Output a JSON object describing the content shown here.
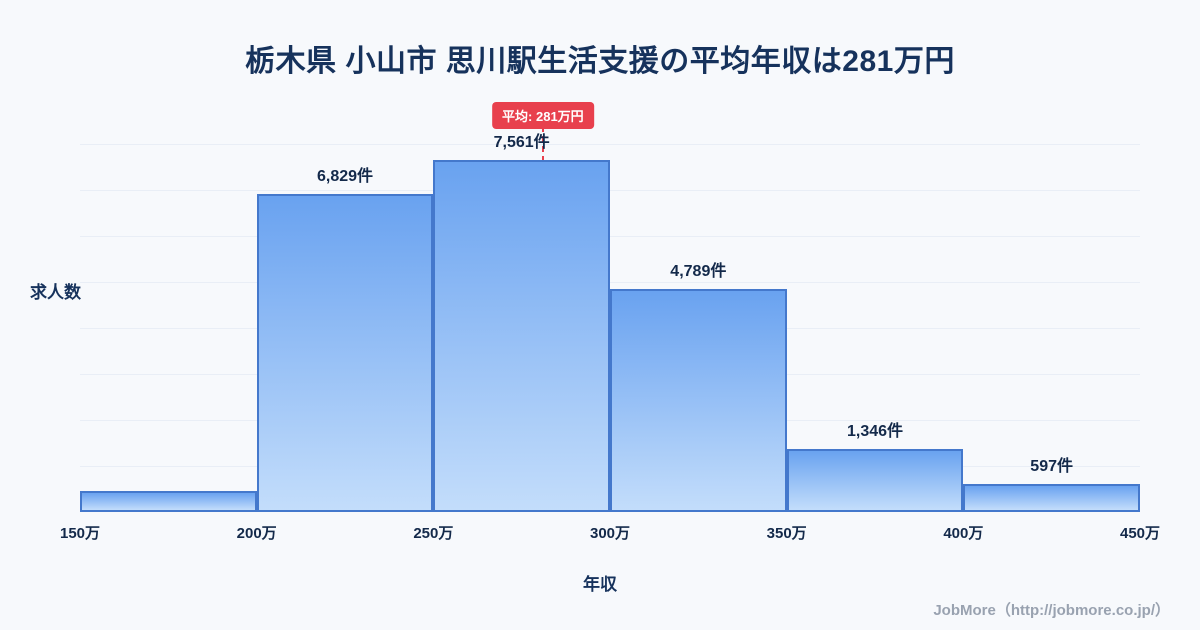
{
  "title": "栃木県 小山市 思川駅生活支援の平均年収は281万円",
  "footer": {
    "credit": "JobMore（http://jobmore.co.jp/）"
  },
  "colors": {
    "background": "#f7f9fc",
    "title_text": "#16325c",
    "bar_gradient_top": "#69a2f0",
    "bar_gradient_bottom": "#c3ddfb",
    "bar_border": "#4478cc",
    "accent_red": "#e8404d",
    "gridline": "#e9eef6",
    "footer_text": "#99a2b0"
  },
  "chart_data": {
    "type": "bar",
    "title": "栃木県 小山市 思川駅生活支援の平均年収は281万円",
    "xlabel": "年収",
    "ylabel": "求人数",
    "x_ticks": [
      "150万",
      "200万",
      "250万",
      "300万",
      "350万",
      "400万",
      "450万"
    ],
    "x_range": [
      150,
      450
    ],
    "ymax": 7561,
    "grid": true,
    "bins": [
      {
        "range": "150万-200万",
        "value": 450,
        "label": ""
      },
      {
        "range": "200万-250万",
        "value": 6829,
        "label": "6,829件"
      },
      {
        "range": "250万-300万",
        "value": 7561,
        "label": "7,561件"
      },
      {
        "range": "300万-350万",
        "value": 4789,
        "label": "4,789件"
      },
      {
        "range": "350万-400万",
        "value": 1346,
        "label": "1,346件"
      },
      {
        "range": "400万-450万",
        "value": 597,
        "label": "597件"
      }
    ],
    "average": {
      "value": 281,
      "label": "平均: 281万円",
      "x_min": 150,
      "x_max": 450
    }
  }
}
